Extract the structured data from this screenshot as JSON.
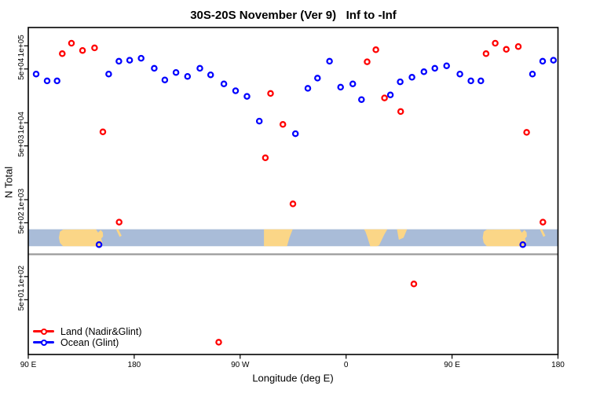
{
  "title": "30S-20S November (Ver 9)   Inf to -Inf",
  "chart_data": {
    "type": "scatter",
    "title": "30S-20S November (Ver 9)   Inf to -Inf",
    "xlabel": "Longitude (deg E)",
    "ylabel": "N Total",
    "x_axis": {
      "description": "Longitude axis spanning 450 degrees eastward starting at 90E (90E > 180 > 90W > 0 > 90E > 180); points in the 90E-180 overlap repeat",
      "span_deg": 450,
      "tick_positions_deg": [
        0,
        90,
        180,
        270,
        360,
        450
      ],
      "tick_labels": [
        "90 E",
        "180",
        "90 W",
        "0",
        "90 E",
        "180"
      ]
    },
    "y_axis": {
      "scale": "log",
      "tick_values": [
        100000,
        50000,
        10000,
        5000,
        1000,
        500,
        100,
        50
      ],
      "tick_labels": [
        "1e+05",
        "5e+04",
        "1e+04",
        "5e+03",
        "1e+03",
        "5e+02",
        "1e+02",
        "5e+01"
      ],
      "range": [
        10,
        200000
      ]
    },
    "series": [
      {
        "name": "Land (Nadir&Glint)",
        "color": "#ff0000",
        "marker": "open-circle",
        "points": [
          [
            28.9,
            79000
          ],
          [
            36.7,
            108000
          ],
          [
            46.1,
            87000
          ],
          [
            56.3,
            94000
          ],
          [
            63.4,
            7600
          ],
          [
            77.2,
            510
          ],
          [
            161.8,
            14
          ],
          [
            201.4,
            3500
          ],
          [
            205.8,
            24000
          ],
          [
            216.3,
            9500
          ],
          [
            224.8,
            880
          ],
          [
            287.9,
            62000
          ],
          [
            295.3,
            89000
          ],
          [
            302.6,
            21000
          ],
          [
            316.4,
            14000
          ],
          [
            327.6,
            80
          ],
          [
            388.9,
            79000
          ],
          [
            396.7,
            108000
          ],
          [
            406.1,
            90000
          ],
          [
            416.3,
            98000
          ],
          [
            423.4,
            7500
          ],
          [
            437.2,
            510
          ]
        ]
      },
      {
        "name": "Ocean (Glint)",
        "color": "#0000ff",
        "marker": "open-circle",
        "points": [
          [
            6.7,
            43000
          ],
          [
            16,
            35000
          ],
          [
            24.5,
            35000
          ],
          [
            60.1,
            260
          ],
          [
            68.3,
            43000
          ],
          [
            77,
            63000
          ],
          [
            86.1,
            65000
          ],
          [
            95.9,
            69000
          ],
          [
            107,
            51000
          ],
          [
            116,
            36000
          ],
          [
            125.5,
            45000
          ],
          [
            135.3,
            40000
          ],
          [
            145.8,
            51000
          ],
          [
            154.9,
            42000
          ],
          [
            166.2,
            32000
          ],
          [
            176.1,
            26000
          ],
          [
            185.8,
            22000
          ],
          [
            196.3,
            10500
          ],
          [
            227,
            7200
          ],
          [
            237.5,
            28000
          ],
          [
            245.7,
            38000
          ],
          [
            255.9,
            63000
          ],
          [
            265.3,
            29000
          ],
          [
            275.7,
            32000
          ],
          [
            283.1,
            20000
          ],
          [
            307.6,
            23000
          ],
          [
            316,
            34000
          ],
          [
            326,
            39000
          ],
          [
            336.1,
            46000
          ],
          [
            345.4,
            51000
          ],
          [
            355.4,
            55000
          ],
          [
            366.7,
            43000
          ],
          [
            376,
            35000
          ],
          [
            384.5,
            35000
          ],
          [
            420.1,
            260
          ],
          [
            428.3,
            43000
          ],
          [
            437,
            63000
          ],
          [
            446.1,
            65000
          ]
        ]
      }
    ],
    "legend": {
      "position": "bottom-left",
      "items": [
        "Land (Nadir&Glint)",
        "Ocean (Glint)"
      ]
    }
  },
  "map_band": {
    "description": "30S-20S latitude world-map strip drawn across the plot",
    "ocean_color": "#a9bcd8",
    "land_color": "#fbd687",
    "y_range_n": [
      248,
      412
    ],
    "repeat_every_deg": 360,
    "land_polygons": [
      {
        "name": "australia",
        "pts": [
          [
            26.0,
            0.5
          ],
          [
            26.9,
            0.14
          ],
          [
            29.5,
            0.02
          ],
          [
            57.5,
            0.0
          ],
          [
            59.3,
            0.2
          ],
          [
            61.5,
            0.04
          ],
          [
            63.3,
            0.18
          ],
          [
            63.6,
            0.42
          ],
          [
            62.0,
            0.55
          ],
          [
            63.0,
            0.8
          ],
          [
            62.0,
            1.0
          ],
          [
            29.5,
            1.0
          ],
          [
            26.9,
            0.8
          ]
        ]
      },
      {
        "name": "new-caledonia",
        "pts": [
          [
            74.6,
            0.0
          ],
          [
            76.6,
            0.0
          ],
          [
            79.3,
            0.38
          ],
          [
            77.6,
            0.45
          ]
        ]
      },
      {
        "name": "south-america",
        "pts": [
          [
            200.2,
            0.0
          ],
          [
            224.6,
            0.0
          ],
          [
            221.8,
            0.5
          ],
          [
            219.8,
            1.0
          ],
          [
            200.2,
            1.0
          ]
        ]
      },
      {
        "name": "africa",
        "pts": [
          [
            285.2,
            0.0
          ],
          [
            305.0,
            0.0
          ],
          [
            302.5,
            0.3
          ],
          [
            298.0,
            0.95
          ],
          [
            296.0,
            1.0
          ],
          [
            290.5,
            1.0
          ],
          [
            288.0,
            0.45
          ],
          [
            286.5,
            0.15
          ]
        ]
      },
      {
        "name": "madagascar",
        "pts": [
          [
            313.2,
            0.0
          ],
          [
            321.8,
            0.0
          ],
          [
            318.8,
            0.5
          ],
          [
            314.8,
            0.62
          ]
        ]
      }
    ]
  }
}
